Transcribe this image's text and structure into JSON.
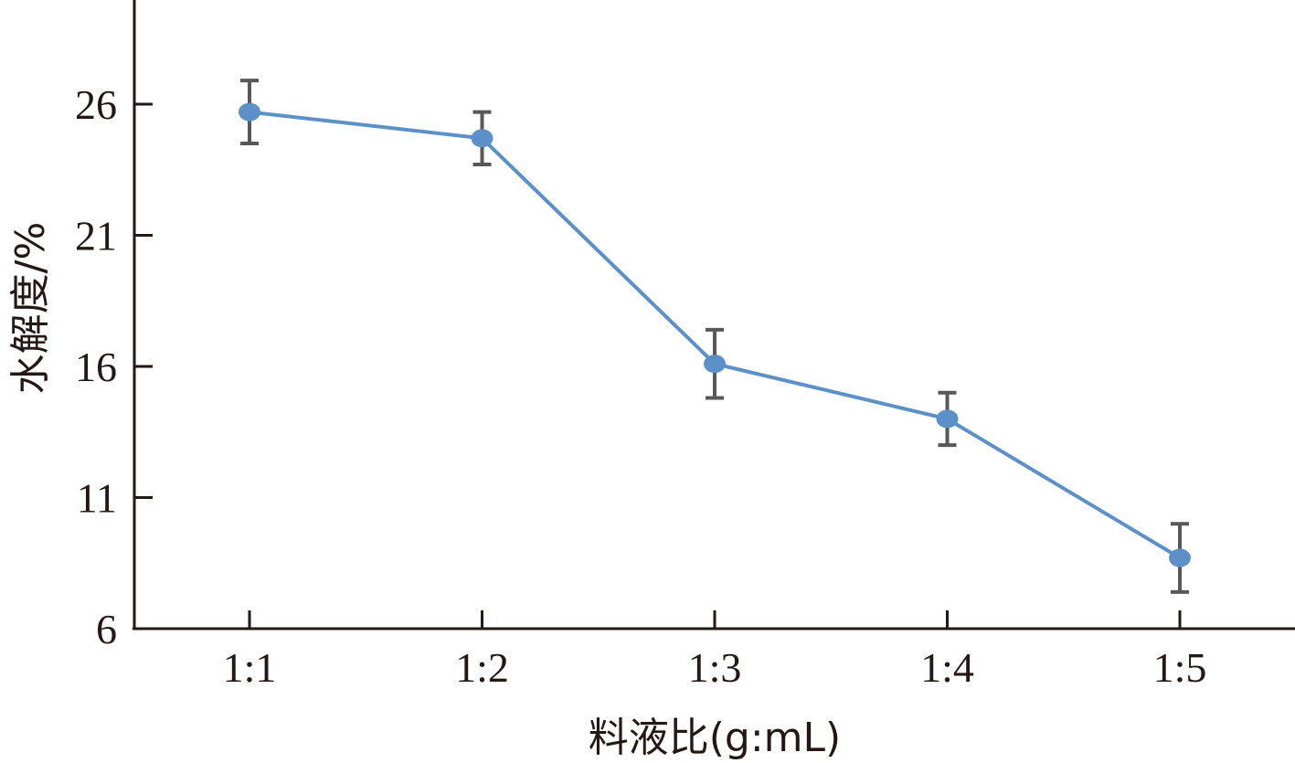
{
  "chart_data": {
    "type": "line",
    "title": "",
    "xlabel": "料液比(g:mL)",
    "ylabel": "水解度/%",
    "categories": [
      "1:1",
      "1:2",
      "1:3",
      "1:4",
      "1:5"
    ],
    "ylim": [
      6,
      30
    ],
    "yticks": [
      6,
      11,
      16,
      21,
      26
    ],
    "series": [
      {
        "values": [
          25.7,
          24.7,
          16.1,
          14.0,
          8.7
        ],
        "errors": [
          1.2,
          1.0,
          1.3,
          1.0,
          1.3
        ]
      }
    ],
    "grid": false,
    "legend": "none",
    "colors": {
      "line": "#5b91c8",
      "marker": "#5b91c8",
      "errorbar": "#595757",
      "axis": "#231815"
    }
  }
}
